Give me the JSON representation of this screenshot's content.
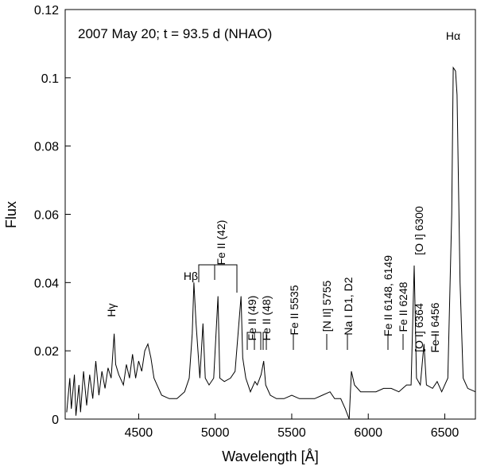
{
  "chart_data": {
    "type": "line",
    "xlabel": "Wavelength [Å]",
    "ylabel": "Flux",
    "xlim": [
      4020,
      6700
    ],
    "ylim": [
      0,
      0.12
    ],
    "xticks": [
      4500,
      5000,
      5500,
      6000,
      6500
    ],
    "yticks": [
      0,
      0.02,
      0.04,
      0.06,
      0.08,
      0.1,
      0.12
    ],
    "color": "#000000",
    "x": [
      4030,
      4050,
      4060,
      4080,
      4090,
      4110,
      4120,
      4140,
      4160,
      4180,
      4200,
      4220,
      4240,
      4260,
      4280,
      4300,
      4320,
      4340,
      4350,
      4370,
      4400,
      4420,
      4440,
      4460,
      4480,
      4500,
      4520,
      4540,
      4560,
      4580,
      4600,
      4620,
      4650,
      4700,
      4750,
      4800,
      4830,
      4850,
      4861,
      4875,
      4900,
      4920,
      4935,
      4960,
      4990,
      5018,
      5030,
      5060,
      5100,
      5130,
      5169,
      5180,
      5200,
      5230,
      5260,
      5275,
      5300,
      5317,
      5330,
      5360,
      5400,
      5450,
      5500,
      5550,
      5600,
      5650,
      5700,
      5750,
      5780,
      5820,
      5850,
      5875,
      5890,
      5910,
      5950,
      6000,
      6050,
      6100,
      6150,
      6200,
      6250,
      6280,
      6300,
      6315,
      6340,
      6364,
      6380,
      6420,
      6450,
      6480,
      6520,
      6545,
      6555,
      6570,
      6580,
      6600,
      6620,
      6650,
      6700
    ],
    "values": [
      0.002,
      0.012,
      0.003,
      0.013,
      0.001,
      0.01,
      0.002,
      0.014,
      0.004,
      0.013,
      0.006,
      0.017,
      0.007,
      0.014,
      0.009,
      0.015,
      0.012,
      0.025,
      0.016,
      0.013,
      0.01,
      0.016,
      0.012,
      0.019,
      0.012,
      0.017,
      0.014,
      0.02,
      0.022,
      0.018,
      0.012,
      0.01,
      0.007,
      0.006,
      0.006,
      0.008,
      0.012,
      0.025,
      0.04,
      0.028,
      0.012,
      0.028,
      0.012,
      0.01,
      0.012,
      0.036,
      0.012,
      0.011,
      0.012,
      0.014,
      0.036,
      0.018,
      0.012,
      0.008,
      0.011,
      0.01,
      0.013,
      0.017,
      0.01,
      0.007,
      0.006,
      0.006,
      0.007,
      0.006,
      0.006,
      0.006,
      0.007,
      0.008,
      0.006,
      0.006,
      0.003,
      0.0,
      0.014,
      0.01,
      0.008,
      0.008,
      0.008,
      0.009,
      0.009,
      0.008,
      0.01,
      0.01,
      0.045,
      0.012,
      0.01,
      0.022,
      0.01,
      0.009,
      0.011,
      0.008,
      0.012,
      0.06,
      0.103,
      0.102,
      0.095,
      0.04,
      0.012,
      0.009,
      0.008
    ],
    "annotations": [
      "2007 May 20; t = 93.5 d (NHAO)",
      "Hα",
      "Hβ",
      "Hγ",
      "Fe II (42)",
      "Fe II (49)",
      "Fe II (48)",
      "Fe II 5535",
      "[N II] 5755",
      "Na I D1, D2",
      "Fe II 6148, 6149",
      "Fe II 6248",
      "[O I] 6300",
      "[O I] 6364",
      "Fe II 6456"
    ]
  }
}
